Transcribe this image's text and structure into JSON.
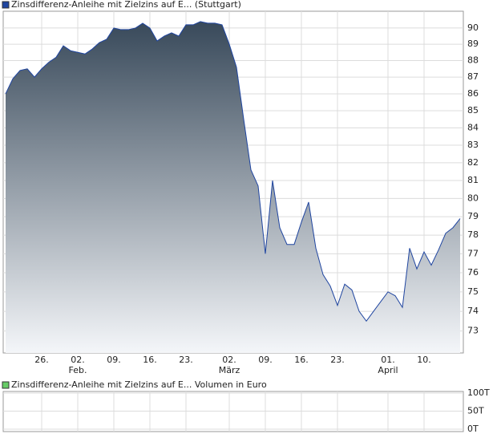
{
  "chart_data": [
    {
      "type": "area",
      "legend": "Zinsdifferenz-Anleihe mit Zielzins auf E... (Stuttgart)",
      "log_scale": true,
      "grid": true,
      "categories": [
        null,
        null,
        null,
        null,
        null,
        "26.",
        null,
        null,
        null,
        null,
        "02.\nFeb.",
        null,
        null,
        null,
        null,
        "09.",
        null,
        null,
        null,
        null,
        "16.",
        null,
        null,
        null,
        null,
        "23.",
        null,
        null,
        null,
        null,
        null,
        "02.\nMärz",
        null,
        null,
        null,
        null,
        "09.",
        null,
        null,
        null,
        null,
        "16.",
        null,
        null,
        null,
        null,
        "23.",
        null,
        null,
        null,
        null,
        null,
        null,
        "01.\nApril",
        null,
        null,
        null,
        null,
        "10.",
        null,
        null,
        null,
        null,
        null
      ],
      "series": [
        {
          "name": "Zinsdifferenz-Anleihe mit Zielzins auf E... (Stuttgart)",
          "color": "#1f45a0",
          "values": [
            86.0,
            86.9,
            87.4,
            87.5,
            87.0,
            87.5,
            87.9,
            88.2,
            88.9,
            88.6,
            88.5,
            88.4,
            88.7,
            89.1,
            89.3,
            90.0,
            89.9,
            89.9,
            90.0,
            90.3,
            90.0,
            89.2,
            89.5,
            89.7,
            89.5,
            90.2,
            90.2,
            90.4,
            90.3,
            90.3,
            90.2,
            89.0,
            87.6,
            84.5,
            81.6,
            80.7,
            77.0,
            81.0,
            78.4,
            77.5,
            77.5,
            78.7,
            79.8,
            77.3,
            75.9,
            75.3,
            74.3,
            75.4,
            75.1,
            74.0,
            73.5,
            74.0,
            74.5,
            75.0,
            74.8,
            74.2,
            77.3,
            76.2,
            77.1,
            76.4,
            77.2,
            78.1,
            78.4,
            78.9
          ]
        }
      ],
      "ylim": [
        71.9,
        91.05
      ],
      "yticks": [
        73,
        74,
        75,
        76,
        77,
        78,
        79,
        80,
        81,
        82,
        83,
        84,
        85,
        86,
        87,
        88,
        89,
        90
      ]
    },
    {
      "type": "bar",
      "legend": "Zinsdifferenz-Anleihe mit Zielzins auf E... Volumen in Euro",
      "color": "#66cc66",
      "grid": true,
      "ylim": [
        0,
        100000
      ],
      "yticks": [
        {
          "value": 0,
          "label": "0T"
        },
        {
          "value": 50000,
          "label": "50T"
        },
        {
          "value": 100000,
          "label": "100T"
        }
      ]
    }
  ]
}
